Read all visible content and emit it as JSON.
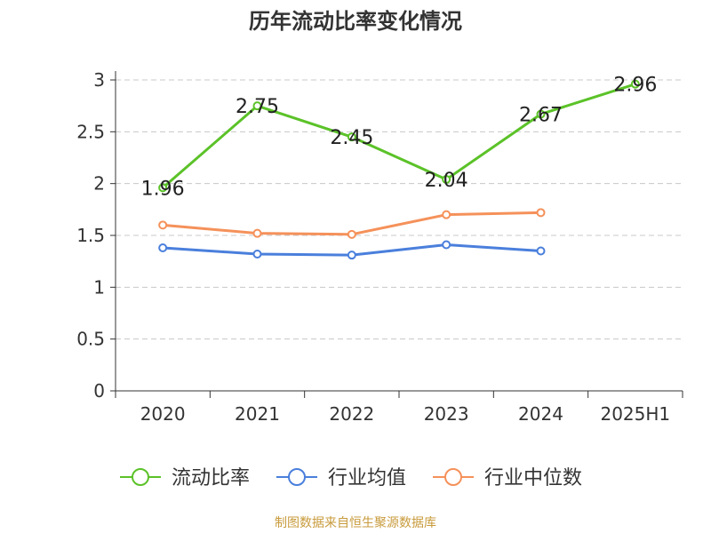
{
  "title": "历年流动比率变化情况",
  "source": "制图数据来自恒生聚源数据库",
  "chart_data": {
    "type": "line",
    "title": "历年流动比率变化情况",
    "categories": [
      "2020",
      "2021",
      "2022",
      "2023",
      "2024",
      "2025H1"
    ],
    "ylim": [
      0,
      3
    ],
    "yticks": [
      "0",
      "0.5",
      "1",
      "1.5",
      "2",
      "2.5",
      "3"
    ],
    "grid": "horizontal dashed",
    "legend_position": "bottom",
    "series": [
      {
        "name": "流动比率",
        "color": "#5bc228",
        "values": [
          1.96,
          2.75,
          2.45,
          2.04,
          2.67,
          2.96
        ],
        "labels": [
          "1.96",
          "2.75",
          "2.45",
          "2.04",
          "2.67",
          "2.96"
        ]
      },
      {
        "name": "行业均值",
        "color": "#4a7fdc",
        "values": [
          1.38,
          1.32,
          1.31,
          1.41,
          1.35,
          null
        ]
      },
      {
        "name": "行业中位数",
        "color": "#f5915a",
        "values": [
          1.6,
          1.52,
          1.51,
          1.7,
          1.72,
          null
        ]
      }
    ]
  }
}
